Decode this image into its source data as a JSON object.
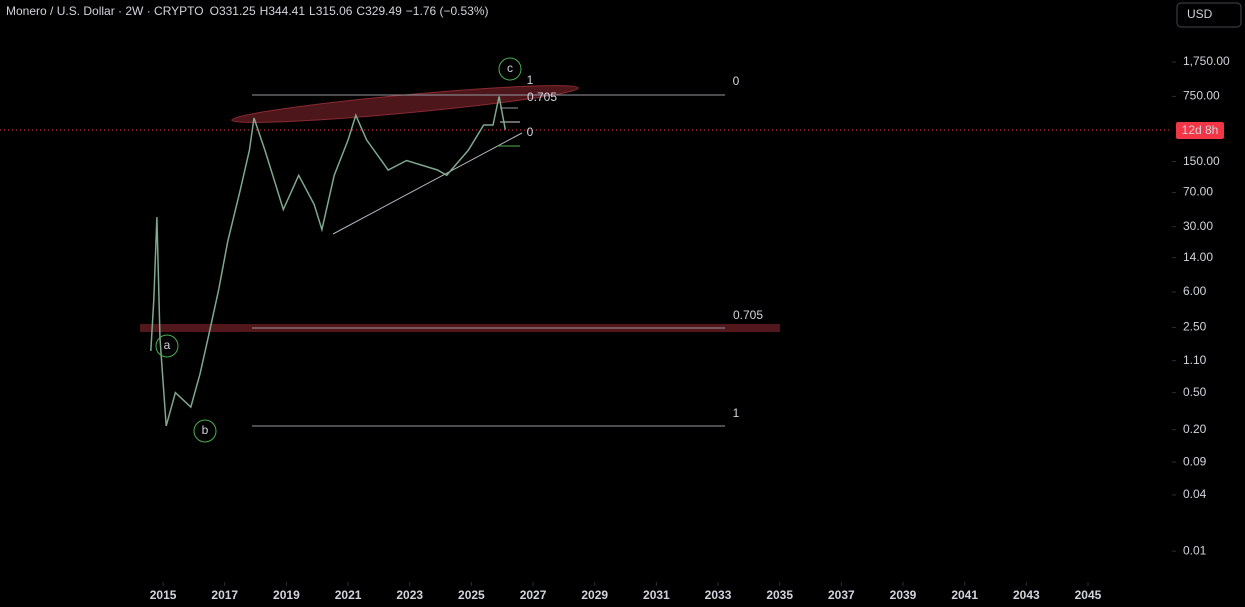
{
  "header": {
    "symbol": "Monero / U.S. Dollar · 2W · CRYPTO",
    "ohlc": [
      {
        "key": "O",
        "value": "331.25"
      },
      {
        "key": "H",
        "value": "344.41"
      },
      {
        "key": "L",
        "value": "315.06"
      },
      {
        "key": "C",
        "value": "329.49"
      }
    ],
    "change": "−1.76 (−0.53%)"
  },
  "currency": "USD",
  "countdown": "12d 8h",
  "chart": {
    "type": "line",
    "log_scale": true,
    "color": "#7fa88f",
    "xlim": [
      2009.71,
      2047.66
    ],
    "ylim": [
      0.0049,
      8100
    ],
    "xticks": [
      2015,
      2017,
      2019,
      2021,
      2023,
      2025,
      2027,
      2029,
      2031,
      2033,
      2035,
      2037,
      2039,
      2041,
      2043,
      2045
    ],
    "yticks": [
      {
        "value": 1750,
        "label": "1,750.00"
      },
      {
        "value": 750,
        "label": "750.00"
      },
      {
        "value": 150,
        "label": "150.00"
      },
      {
        "value": 70,
        "label": "70.00"
      },
      {
        "value": 30,
        "label": "30.00"
      },
      {
        "value": 14,
        "label": "14.00"
      },
      {
        "value": 6,
        "label": "6.00"
      },
      {
        "value": 2.5,
        "label": "2.50"
      },
      {
        "value": 1.1,
        "label": "1.10"
      },
      {
        "value": 0.5,
        "label": "0.50"
      },
      {
        "value": 0.2,
        "label": "0.20"
      },
      {
        "value": 0.09,
        "label": "0.09"
      },
      {
        "value": 0.04,
        "label": "0.04"
      },
      {
        "value": 0.01,
        "label": "0.01"
      }
    ],
    "x": [
      2014.6,
      2014.7,
      2014.8,
      2014.9,
      2015.1,
      2015.4,
      2015.9,
      2016.2,
      2016.5,
      2016.8,
      2017.1,
      2017.5,
      2017.8,
      2017.95,
      2018.3,
      2018.6,
      2018.9,
      2019.4,
      2019.9,
      2020.15,
      2020.55,
      2021.0,
      2021.25,
      2021.6,
      2022.3,
      2022.9,
      2023.9,
      2024.2,
      2024.9,
      2025.4,
      2025.7,
      2025.9,
      2026.1
    ],
    "values": [
      1.4,
      4.9,
      38,
      1.9,
      0.22,
      0.5,
      0.35,
      0.8,
      2.2,
      6.3,
      21,
      74,
      198,
      440,
      200,
      96,
      46,
      107,
      52,
      28,
      107,
      256,
      470,
      256,
      122,
      154,
      122,
      107,
      198,
      370,
      370,
      750,
      329.49
    ]
  },
  "annotations": {
    "fib_right": [
      "0",
      "0.705",
      "1"
    ],
    "fib_small": [
      "1",
      "0.705",
      "0"
    ],
    "waves": [
      "a",
      "b",
      "c"
    ]
  }
}
